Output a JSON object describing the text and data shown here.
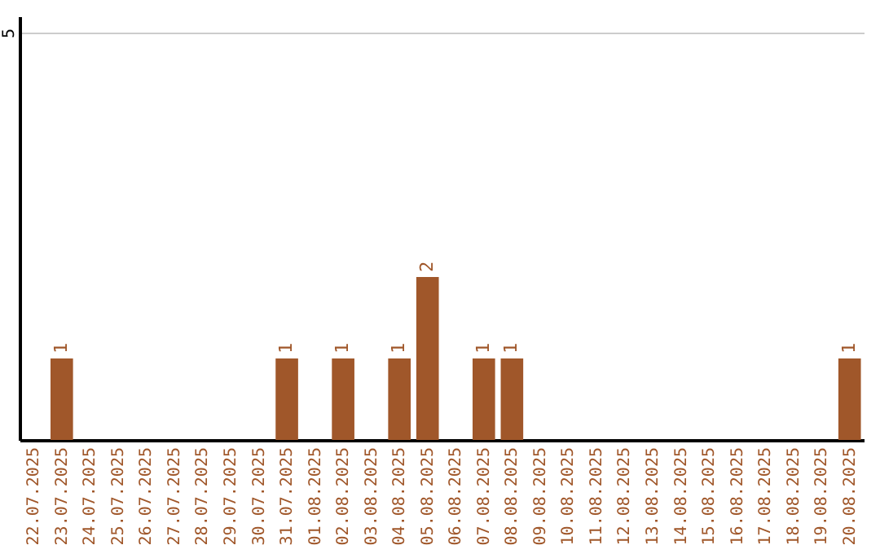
{
  "chart_data": {
    "type": "bar",
    "categories": [
      "22.07.2025",
      "23.07.2025",
      "24.07.2025",
      "25.07.2025",
      "26.07.2025",
      "27.07.2025",
      "28.07.2025",
      "29.07.2025",
      "30.07.2025",
      "31.07.2025",
      "01.08.2025",
      "02.08.2025",
      "03.08.2025",
      "04.08.2025",
      "05.08.2025",
      "06.08.2025",
      "07.08.2025",
      "08.08.2025",
      "09.08.2025",
      "10.08.2025",
      "11.08.2025",
      "12.08.2025",
      "13.08.2025",
      "14.08.2025",
      "15.08.2025",
      "16.08.2025",
      "17.08.2025",
      "18.08.2025",
      "19.08.2025",
      "20.08.2025"
    ],
    "values": [
      0,
      1,
      0,
      0,
      0,
      0,
      0,
      0,
      0,
      1,
      0,
      1,
      0,
      1,
      2,
      0,
      1,
      1,
      0,
      0,
      0,
      0,
      0,
      0,
      0,
      0,
      0,
      0,
      0,
      1
    ],
    "value_labels": [
      null,
      "1",
      null,
      null,
      null,
      null,
      null,
      null,
      null,
      "1",
      null,
      "1",
      null,
      "1",
      "2",
      null,
      "1",
      "1",
      null,
      null,
      null,
      null,
      null,
      null,
      null,
      null,
      null,
      null,
      null,
      "1"
    ],
    "color": "#a0572a",
    "ylim": [
      0,
      5.2
    ],
    "yticks": [
      5
    ],
    "grid": "y"
  }
}
